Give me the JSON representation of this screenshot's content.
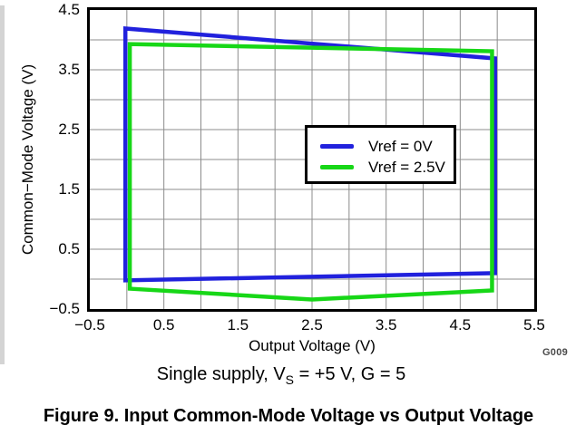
{
  "page": {
    "caption": "Figure 9. Input Common-Mode Voltage vs Output Voltage",
    "condition": {
      "prefix": "Single supply, V",
      "sub": "S",
      "suffix": " = +5 V, G = 5"
    },
    "watermark": "G009"
  },
  "chart_data": {
    "type": "line",
    "title": "",
    "xlabel": "Output Voltage (V)",
    "ylabel": "Common−Mode Voltage (V)",
    "xlim": [
      -0.5,
      5.5
    ],
    "ylim": [
      -0.5,
      4.5
    ],
    "grid": true,
    "grid_step": 0.5,
    "grid_color": "#8c8c8c",
    "axis_color": "#000000",
    "x_ticks": [
      {
        "v": -0.5,
        "label": "−0.5"
      },
      {
        "v": 0.5,
        "label": "0.5"
      },
      {
        "v": 1.5,
        "label": "1.5"
      },
      {
        "v": 2.5,
        "label": "2.5"
      },
      {
        "v": 3.5,
        "label": "3.5"
      },
      {
        "v": 4.5,
        "label": "4.5"
      },
      {
        "v": 5.5,
        "label": "5.5"
      }
    ],
    "y_ticks": [
      {
        "v": 4.5,
        "label": "4.5"
      },
      {
        "v": 3.5,
        "label": "3.5"
      },
      {
        "v": 2.5,
        "label": "2.5"
      },
      {
        "v": 1.5,
        "label": "1.5"
      },
      {
        "v": 0.5,
        "label": "0.5"
      },
      {
        "v": -0.5,
        "label": "−0.5"
      }
    ],
    "legend": {
      "position": "inside-upper-right"
    },
    "series": [
      {
        "name": "Vref = 0V",
        "color": "#2121dd",
        "closed": true,
        "line_width": 4.5,
        "points": [
          [
            -0.02,
            -0.02
          ],
          [
            -0.02,
            4.19
          ],
          [
            4.97,
            3.69
          ],
          [
            4.97,
            0.1
          ]
        ]
      },
      {
        "name": "Vref = 2.5V",
        "color": "#17d717",
        "closed": true,
        "line_width": 4.5,
        "points": [
          [
            0.04,
            -0.16
          ],
          [
            0.04,
            3.93
          ],
          [
            4.93,
            3.81
          ],
          [
            4.93,
            -0.19
          ],
          [
            2.5,
            -0.34
          ]
        ]
      }
    ]
  }
}
